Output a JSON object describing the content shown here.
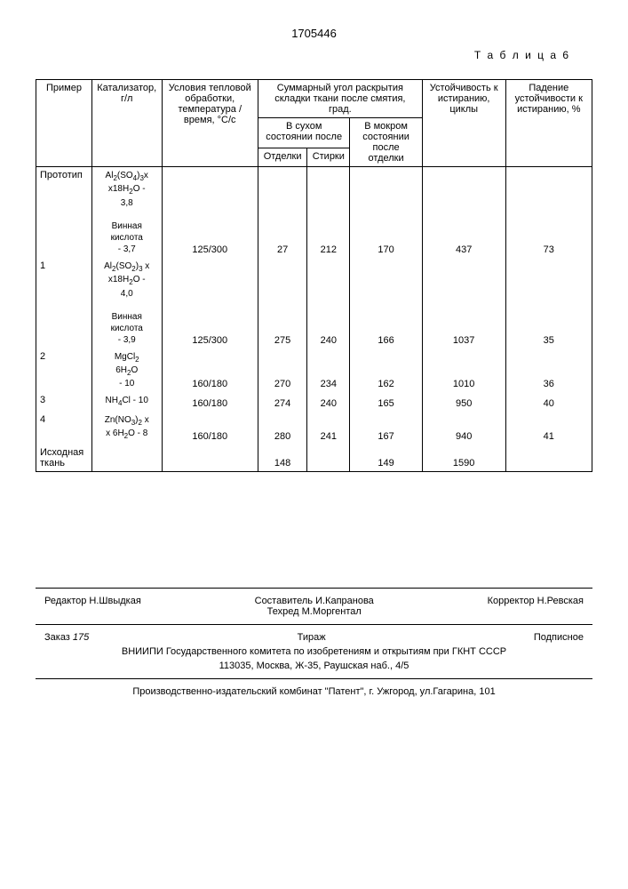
{
  "doc_number": "1705446",
  "table_label": "Т а б л и ц а 6",
  "headers": {
    "col1": "Пример",
    "col2": "Катализатор, г/л",
    "col3": "Условия тепловой обработки, температура / время, °С/с",
    "col4_group": "Суммарный угол раскрытия складки ткани после смятия, град.",
    "col4_sub1_group": "В сухом состоянии после",
    "col4_sub1a": "Отделки",
    "col4_sub1b": "Стирки",
    "col4_sub2": "В мокром состоянии после отделки",
    "col5": "Устойчивость к истиранию, циклы",
    "col6": "Падение устойчивости к истиранию, %"
  },
  "rows": [
    {
      "example": "Прототип",
      "catalyst_html": "Al<sub>2</sub>(SO<sub>4</sub>)<sub>3</sub>x<br>x18H<sub>2</sub>O -<br>3,8<br><br>Винная<br>кислота<br>- 3,7",
      "cond": "125/300",
      "dry_otd": "27",
      "dry_st": "212",
      "wet": "170",
      "abr": "437",
      "drop": "73"
    },
    {
      "example": "1",
      "catalyst_html": "Al<sub>2</sub>(SO<sub>2</sub>)<sub>3</sub> x<br>x18H<sub>2</sub>O -<br>4,0<br><br>Винная<br>кислота<br>- 3,9",
      "cond": "125/300",
      "dry_otd": "275",
      "dry_st": "240",
      "wet": "166",
      "abr": "1037",
      "drop": "35"
    },
    {
      "example": "2",
      "catalyst_html": "MgCl<sub>2</sub><br>6H<sub>2</sub>O<br>- 10",
      "cond": "160/180",
      "dry_otd": "270",
      "dry_st": "234",
      "wet": "162",
      "abr": "1010",
      "drop": "36"
    },
    {
      "example": "3",
      "catalyst_html": "NH<sub>4</sub>Cl - 10",
      "cond": "160/180",
      "dry_otd": "274",
      "dry_st": "240",
      "wet": "165",
      "abr": "950",
      "drop": "40"
    },
    {
      "example": "4",
      "catalyst_html": "Zn(NO<sub>3</sub>)<sub>2</sub> x<br>x 6H<sub>2</sub>O - 8",
      "cond": "160/180",
      "dry_otd": "280",
      "dry_st": "241",
      "wet": "167",
      "abr": "940",
      "drop": "41"
    },
    {
      "example": "Исходная ткань",
      "catalyst_html": "",
      "cond": "",
      "dry_otd": "148",
      "dry_st": "",
      "wet": "149",
      "abr": "1590",
      "drop": ""
    }
  ],
  "footer": {
    "editor_label": "Редактор",
    "editor": "Н.Швыдкая",
    "compiler_label": "Составитель",
    "compiler": "И.Капранова",
    "techred_label": "Техред",
    "techred": "М.Моргентал",
    "corrector_label": "Корректор",
    "corrector": "Н.Ревская",
    "order_label": "Заказ",
    "order_num": "175",
    "tirazh": "Тираж",
    "subscribe": "Подписное",
    "org1": "ВНИИПИ Государственного комитета по изобретениям и открытиям при ГКНТ СССР",
    "org2": "113035, Москва, Ж-35, Раушская наб., 4/5",
    "printer": "Производственно-издательский комбинат \"Патент\", г. Ужгород, ул.Гагарина, 101"
  }
}
